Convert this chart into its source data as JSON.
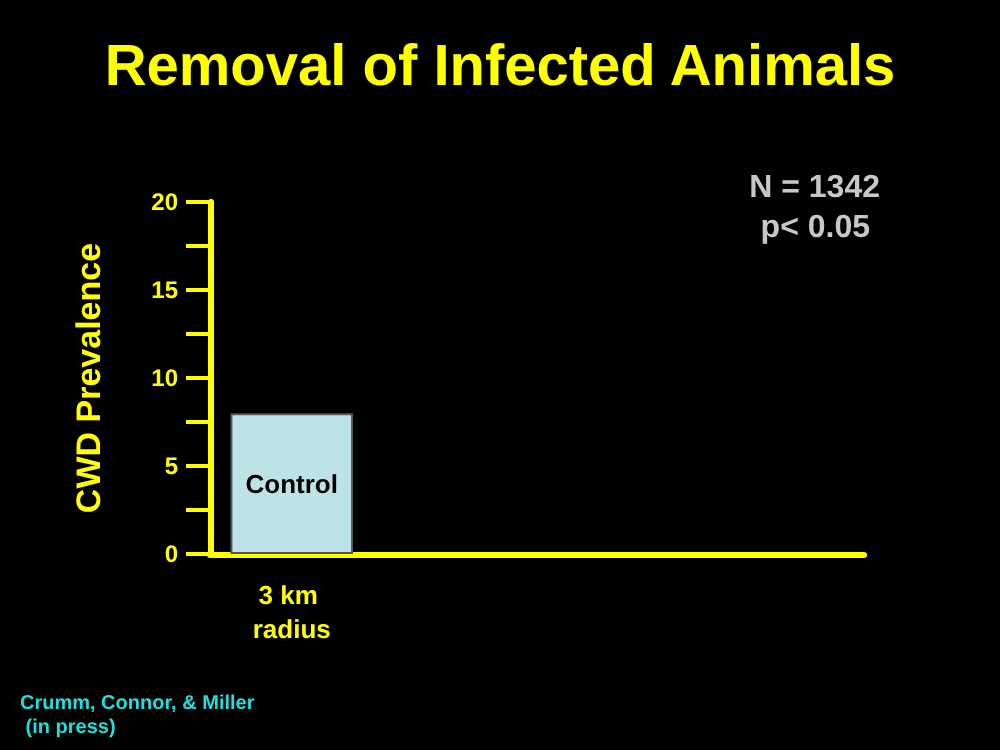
{
  "chart_data": {
    "type": "bar",
    "title": "Removal of Infected Animals",
    "ylabel": "CWD Prevalence",
    "categories": [
      "3 km radius",
      null,
      null,
      null
    ],
    "series": [
      {
        "name": "Control",
        "color": "#bde3e6",
        "values": [
          8,
          null,
          null,
          null
        ]
      }
    ],
    "ylim": [
      0,
      20
    ],
    "yticks": [
      0,
      {
        "value": 2.5,
        "label": null
      },
      5,
      {
        "value": 7.5,
        "label": null
      },
      10,
      {
        "value": 12.5,
        "label": null
      },
      15,
      {
        "value": 17.5,
        "label": null
      },
      20
    ],
    "grid": false,
    "legend": false,
    "annotations": [
      "N = 1342",
      "p< 0.05",
      "Crumm, Connor, & Miller (in press)"
    ]
  }
}
